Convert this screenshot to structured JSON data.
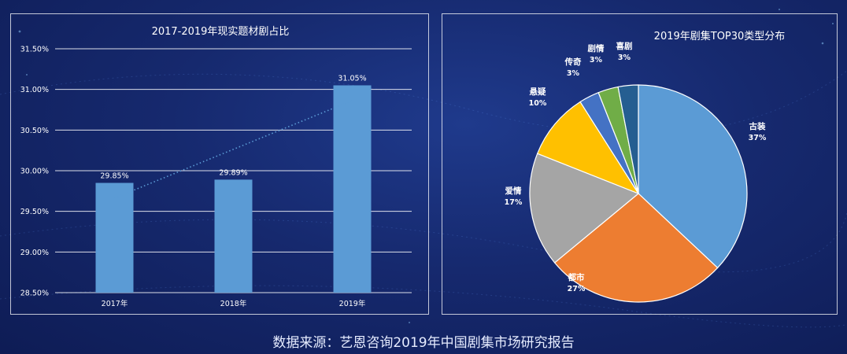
{
  "source_note": "数据来源：艺恩咨询2019年中国剧集市场研究报告",
  "chart_data": [
    {
      "type": "bar",
      "title": "2017-2019年现实题材剧占比",
      "categories": [
        "2017年",
        "2018年",
        "2019年"
      ],
      "values": [
        29.85,
        29.89,
        31.05
      ],
      "data_labels": [
        "29.85%",
        "29.89%",
        "31.05%"
      ],
      "ylim": [
        28.5,
        31.5
      ],
      "yticks": [
        "28.50%",
        "29.00%",
        "29.50%",
        "30.00%",
        "30.50%",
        "31.00%",
        "31.50%"
      ],
      "ytick_values": [
        28.5,
        29.0,
        29.5,
        30.0,
        30.5,
        31.0,
        31.5
      ],
      "trendline": "linear, dotted",
      "grid": true,
      "bar_color": "#5b9bd5"
    },
    {
      "type": "pie",
      "title": "2019年剧集TOP30类型分布",
      "slices": [
        {
          "label": "古装",
          "pct": "37%",
          "value": 37,
          "color": "#5b9bd5"
        },
        {
          "label": "都市",
          "pct": "27%",
          "value": 27,
          "color": "#ed7d31"
        },
        {
          "label": "爱情",
          "pct": "17%",
          "value": 17,
          "color": "#a5a5a5"
        },
        {
          "label": "悬疑",
          "pct": "10%",
          "value": 10,
          "color": "#ffc000"
        },
        {
          "label": "传奇",
          "pct": "3%",
          "value": 3,
          "color": "#4472c4"
        },
        {
          "label": "剧情",
          "pct": "3%",
          "value": 3,
          "color": "#70ad47"
        },
        {
          "label": "喜剧",
          "pct": "3%",
          "value": 3,
          "color": "#255e91"
        }
      ]
    }
  ]
}
